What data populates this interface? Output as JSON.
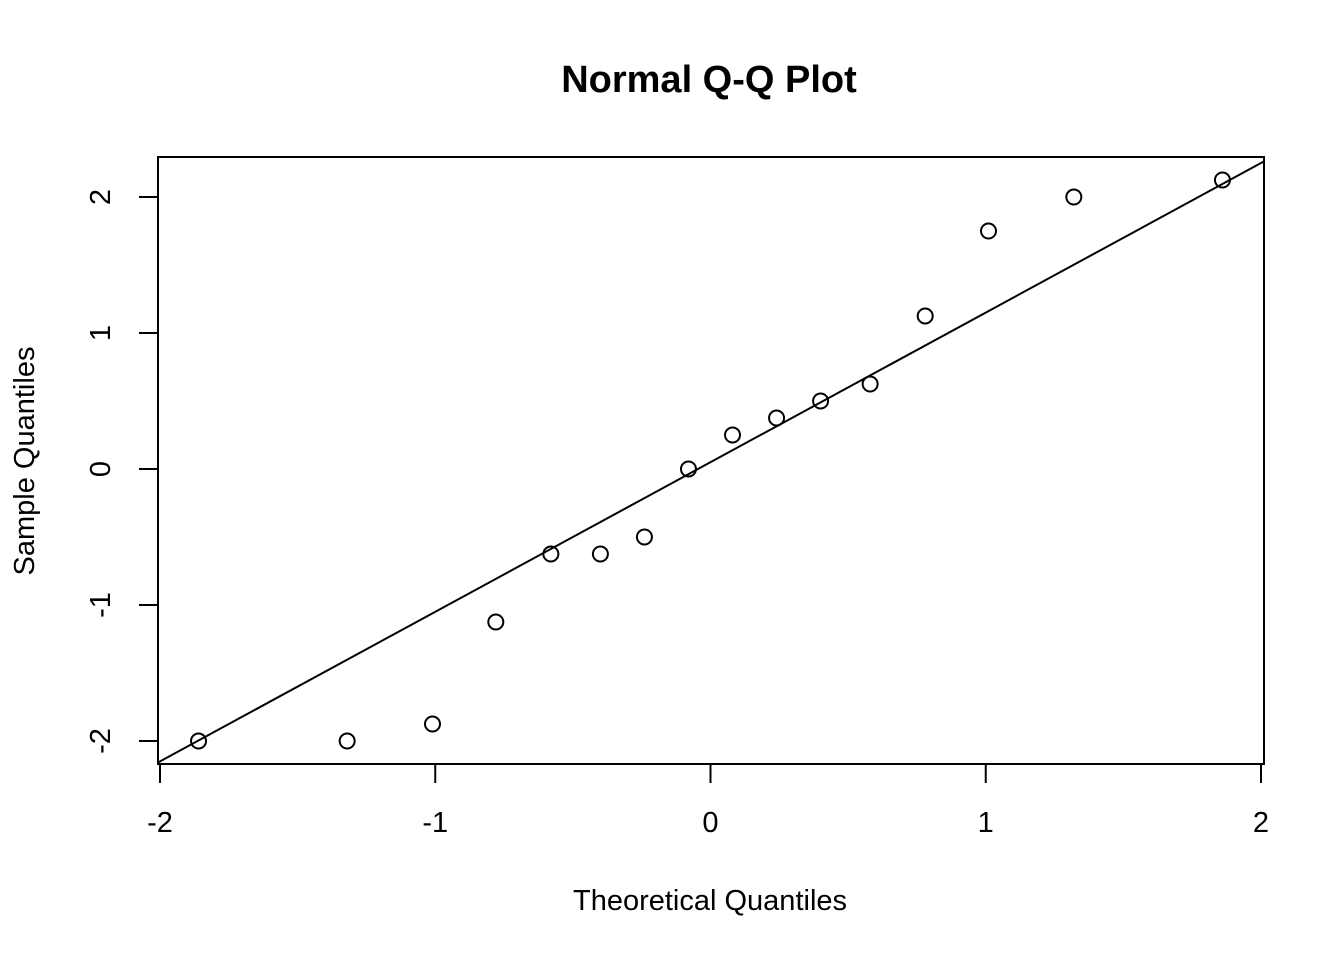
{
  "chart_data": {
    "type": "scatter",
    "title": "Normal Q-Q Plot",
    "xlabel": "Theoretical Quantiles",
    "ylabel": "Sample Quantiles",
    "xlim": [
      -2.0,
      2.0
    ],
    "ylim": [
      -2.15,
      2.25
    ],
    "xticks": [
      "-2",
      "-1",
      "0",
      "1",
      "2"
    ],
    "yticks": [
      "-2",
      "-1",
      "0",
      "1",
      "2"
    ],
    "grid": false,
    "legend": false,
    "points": [
      {
        "x": -1.86,
        "y": -2.0
      },
      {
        "x": -1.32,
        "y": -2.0
      },
      {
        "x": -1.01,
        "y": -1.875
      },
      {
        "x": -0.78,
        "y": -1.125
      },
      {
        "x": -0.58,
        "y": -0.625
      },
      {
        "x": -0.4,
        "y": -0.625
      },
      {
        "x": -0.24,
        "y": -0.5
      },
      {
        "x": -0.08,
        "y": 0.0
      },
      {
        "x": 0.08,
        "y": 0.25
      },
      {
        "x": 0.24,
        "y": 0.375
      },
      {
        "x": 0.4,
        "y": 0.5
      },
      {
        "x": 0.58,
        "y": 0.625
      },
      {
        "x": 0.78,
        "y": 1.125
      },
      {
        "x": 1.01,
        "y": 1.75
      },
      {
        "x": 1.32,
        "y": 2.0
      },
      {
        "x": 1.86,
        "y": 2.125
      }
    ],
    "reference_line": {
      "intercept": 0.05,
      "slope": 1.1
    },
    "colors": {
      "points": "#000000",
      "line": "#000000",
      "axes": "#000000"
    }
  }
}
